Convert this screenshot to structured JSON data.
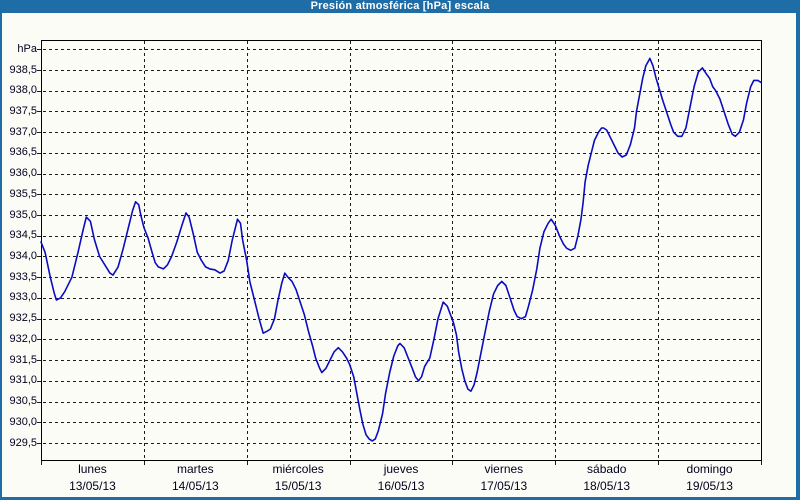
{
  "window": {
    "title": "Presión atmosférica [hPa] escala"
  },
  "colors": {
    "titlebar": "#1f6da6",
    "frame": "#1f6da6",
    "background": "#fcfcf7",
    "grid": "#1c1c1c",
    "text": "#00001e",
    "curve": "#0c0cc0",
    "title_text": "#ffffff"
  },
  "chart_data": {
    "type": "line",
    "title": "Presión atmosférica [hPa] escala",
    "ylabel": "hPa",
    "xlabel": "",
    "grid": true,
    "legend": "none",
    "ylim": [
      929.1,
      939.2
    ],
    "x_range_days": 7,
    "y_axis": {
      "unit_label": "hPa",
      "tick_labels": [
        "938,5",
        "938,0",
        "937,5",
        "937,0",
        "936,5",
        "936,0",
        "935,5",
        "935,0",
        "934,5",
        "934,0",
        "933,5",
        "933,0",
        "932,5",
        "932,0",
        "931,5",
        "931,0",
        "930,5",
        "930,0",
        "929,5"
      ],
      "grid_max": 939.0,
      "grid_min": 929.5,
      "grid_step": 0.5
    },
    "days": [
      {
        "name": "lunes",
        "date": "13/05/13"
      },
      {
        "name": "martes",
        "date": "14/05/13"
      },
      {
        "name": "miércoles",
        "date": "15/05/13"
      },
      {
        "name": "jueves",
        "date": "16/05/13"
      },
      {
        "name": "viernes",
        "date": "17/05/13"
      },
      {
        "name": "sábado",
        "date": "18/05/13"
      },
      {
        "name": "domingo",
        "date": "19/05/13"
      }
    ],
    "series": [
      {
        "name": "presión atmosférica",
        "unit": "hPa",
        "color": "#0c0cc0",
        "points": [
          [
            0,
            934.35
          ],
          [
            0.04,
            934.1
          ],
          [
            0.09,
            933.5
          ],
          [
            0.13,
            933.1
          ],
          [
            0.15,
            932.95
          ],
          [
            0.19,
            933.0
          ],
          [
            0.23,
            933.15
          ],
          [
            0.3,
            933.5
          ],
          [
            0.36,
            934.1
          ],
          [
            0.41,
            934.65
          ],
          [
            0.44,
            934.95
          ],
          [
            0.48,
            934.85
          ],
          [
            0.52,
            934.4
          ],
          [
            0.57,
            934.0
          ],
          [
            0.62,
            933.8
          ],
          [
            0.67,
            933.6
          ],
          [
            0.7,
            933.55
          ],
          [
            0.75,
            933.75
          ],
          [
            0.8,
            934.2
          ],
          [
            0.85,
            934.7
          ],
          [
            0.89,
            935.1
          ],
          [
            0.92,
            935.32
          ],
          [
            0.95,
            935.25
          ],
          [
            0.97,
            935.0
          ],
          [
            1.0,
            934.7
          ],
          [
            1.04,
            934.45
          ],
          [
            1.08,
            934.1
          ],
          [
            1.11,
            933.85
          ],
          [
            1.14,
            933.75
          ],
          [
            1.19,
            933.7
          ],
          [
            1.23,
            933.8
          ],
          [
            1.27,
            934.0
          ],
          [
            1.32,
            934.35
          ],
          [
            1.37,
            934.75
          ],
          [
            1.41,
            935.05
          ],
          [
            1.44,
            934.95
          ],
          [
            1.48,
            934.55
          ],
          [
            1.52,
            934.1
          ],
          [
            1.56,
            933.9
          ],
          [
            1.6,
            933.75
          ],
          [
            1.64,
            933.7
          ],
          [
            1.69,
            933.68
          ],
          [
            1.74,
            933.6
          ],
          [
            1.78,
            933.65
          ],
          [
            1.82,
            933.9
          ],
          [
            1.86,
            934.4
          ],
          [
            1.91,
            934.9
          ],
          [
            1.94,
            934.8
          ],
          [
            1.96,
            934.4
          ],
          [
            2.0,
            933.9
          ],
          [
            2.03,
            933.4
          ],
          [
            2.06,
            933.1
          ],
          [
            2.09,
            932.8
          ],
          [
            2.12,
            932.5
          ],
          [
            2.16,
            932.15
          ],
          [
            2.2,
            932.2
          ],
          [
            2.23,
            932.25
          ],
          [
            2.27,
            932.5
          ],
          [
            2.3,
            932.9
          ],
          [
            2.34,
            933.35
          ],
          [
            2.37,
            933.6
          ],
          [
            2.4,
            933.5
          ],
          [
            2.44,
            933.4
          ],
          [
            2.48,
            933.2
          ],
          [
            2.52,
            932.9
          ],
          [
            2.56,
            932.6
          ],
          [
            2.6,
            932.2
          ],
          [
            2.64,
            931.85
          ],
          [
            2.67,
            931.55
          ],
          [
            2.71,
            931.3
          ],
          [
            2.73,
            931.2
          ],
          [
            2.77,
            931.3
          ],
          [
            2.81,
            931.5
          ],
          [
            2.85,
            931.7
          ],
          [
            2.89,
            931.8
          ],
          [
            2.93,
            931.7
          ],
          [
            2.97,
            931.55
          ],
          [
            3.0,
            931.4
          ],
          [
            3.04,
            931.1
          ],
          [
            3.07,
            930.7
          ],
          [
            3.1,
            930.3
          ],
          [
            3.13,
            929.95
          ],
          [
            3.16,
            929.7
          ],
          [
            3.19,
            929.6
          ],
          [
            3.22,
            929.55
          ],
          [
            3.25,
            929.6
          ],
          [
            3.28,
            929.8
          ],
          [
            3.32,
            930.2
          ],
          [
            3.35,
            930.7
          ],
          [
            3.39,
            931.2
          ],
          [
            3.43,
            931.6
          ],
          [
            3.47,
            931.85
          ],
          [
            3.49,
            931.9
          ],
          [
            3.53,
            931.8
          ],
          [
            3.57,
            931.55
          ],
          [
            3.61,
            931.3
          ],
          [
            3.64,
            931.1
          ],
          [
            3.67,
            931.0
          ],
          [
            3.7,
            931.1
          ],
          [
            3.73,
            931.35
          ],
          [
            3.78,
            931.55
          ],
          [
            3.82,
            932.0
          ],
          [
            3.86,
            932.5
          ],
          [
            3.91,
            932.9
          ],
          [
            3.95,
            932.8
          ],
          [
            3.98,
            932.6
          ],
          [
            4.01,
            932.4
          ],
          [
            4.04,
            932.1
          ],
          [
            4.06,
            931.7
          ],
          [
            4.09,
            931.3
          ],
          [
            4.12,
            931.0
          ],
          [
            4.15,
            930.8
          ],
          [
            4.18,
            930.75
          ],
          [
            4.21,
            930.9
          ],
          [
            4.24,
            931.2
          ],
          [
            4.28,
            931.7
          ],
          [
            4.32,
            932.2
          ],
          [
            4.36,
            932.7
          ],
          [
            4.4,
            933.1
          ],
          [
            4.44,
            933.3
          ],
          [
            4.48,
            933.4
          ],
          [
            4.52,
            933.3
          ],
          [
            4.56,
            933.0
          ],
          [
            4.6,
            932.7
          ],
          [
            4.63,
            932.55
          ],
          [
            4.67,
            932.5
          ],
          [
            4.71,
            932.55
          ],
          [
            4.74,
            932.8
          ],
          [
            4.78,
            933.2
          ],
          [
            4.82,
            933.7
          ],
          [
            4.85,
            934.2
          ],
          [
            4.89,
            934.6
          ],
          [
            4.93,
            934.8
          ],
          [
            4.96,
            934.9
          ],
          [
            5.0,
            934.75
          ],
          [
            5.04,
            934.5
          ],
          [
            5.08,
            934.3
          ],
          [
            5.11,
            934.2
          ],
          [
            5.15,
            934.15
          ],
          [
            5.19,
            934.2
          ],
          [
            5.22,
            934.5
          ],
          [
            5.25,
            934.9
          ],
          [
            5.27,
            935.3
          ],
          [
            5.29,
            935.8
          ],
          [
            5.32,
            936.2
          ],
          [
            5.35,
            936.5
          ],
          [
            5.38,
            936.8
          ],
          [
            5.42,
            937.0
          ],
          [
            5.45,
            937.1
          ],
          [
            5.47,
            937.1
          ],
          [
            5.5,
            937.05
          ],
          [
            5.53,
            936.9
          ],
          [
            5.57,
            936.7
          ],
          [
            5.61,
            936.5
          ],
          [
            5.65,
            936.4
          ],
          [
            5.69,
            936.45
          ],
          [
            5.73,
            936.7
          ],
          [
            5.77,
            937.1
          ],
          [
            5.79,
            937.5
          ],
          [
            5.82,
            937.9
          ],
          [
            5.85,
            938.3
          ],
          [
            5.88,
            938.6
          ],
          [
            5.92,
            938.78
          ],
          [
            5.95,
            938.6
          ],
          [
            5.98,
            938.3
          ],
          [
            6.01,
            938.05
          ],
          [
            6.04,
            937.8
          ],
          [
            6.08,
            937.5
          ],
          [
            6.12,
            937.2
          ],
          [
            6.15,
            937.0
          ],
          [
            6.19,
            936.9
          ],
          [
            6.23,
            936.9
          ],
          [
            6.27,
            937.1
          ],
          [
            6.31,
            937.6
          ],
          [
            6.35,
            938.1
          ],
          [
            6.39,
            938.45
          ],
          [
            6.43,
            938.55
          ],
          [
            6.47,
            938.4
          ],
          [
            6.5,
            938.3
          ],
          [
            6.53,
            938.1
          ],
          [
            6.56,
            938.0
          ],
          [
            6.6,
            937.8
          ],
          [
            6.64,
            937.5
          ],
          [
            6.68,
            937.2
          ],
          [
            6.72,
            936.95
          ],
          [
            6.75,
            936.9
          ],
          [
            6.79,
            937.0
          ],
          [
            6.83,
            937.3
          ],
          [
            6.86,
            937.7
          ],
          [
            6.9,
            938.1
          ],
          [
            6.93,
            938.25
          ],
          [
            6.97,
            938.25
          ],
          [
            7.0,
            938.2
          ]
        ]
      }
    ]
  }
}
